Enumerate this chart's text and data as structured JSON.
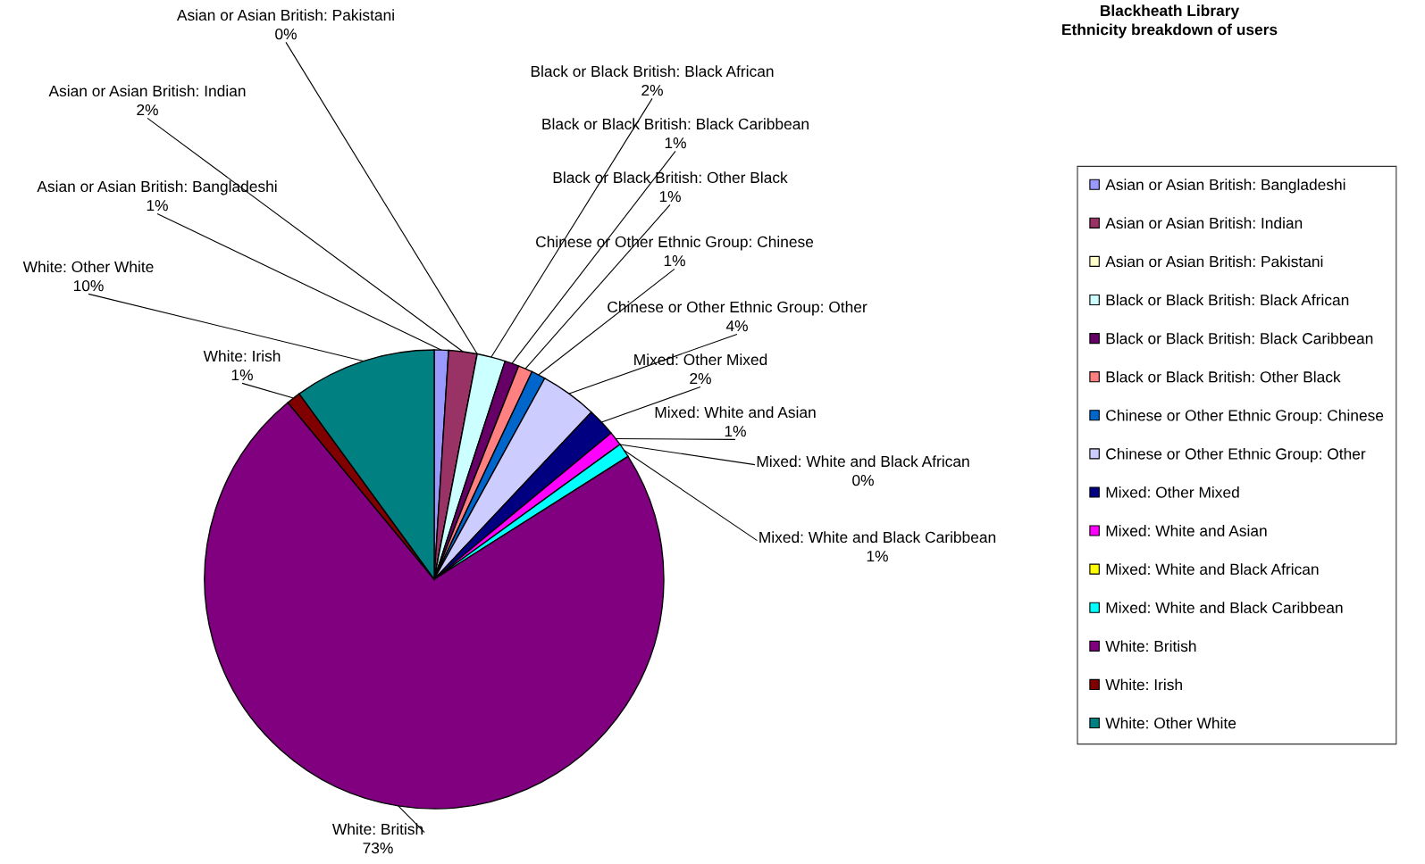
{
  "chart_data": {
    "type": "pie",
    "title": "Blackheath Library\nEthnicity breakdown of users",
    "categories": [
      "Asian or Asian British: Bangladeshi",
      "Asian or Asian British: Indian",
      "Asian or Asian British: Pakistani",
      "Black or Black British: Black African",
      "Black or Black British: Black Caribbean",
      "Black or Black British: Other Black",
      "Chinese or Other Ethnic Group: Chinese",
      "Chinese or Other Ethnic Group: Other",
      "Mixed: Other Mixed",
      "Mixed: White and Asian",
      "Mixed: White and Black African",
      "Mixed: White and Black Caribbean",
      "White: British",
      "White: Irish",
      "White: Other White"
    ],
    "values": [
      1,
      2,
      0,
      2,
      1,
      1,
      1,
      4,
      2,
      1,
      0,
      1,
      73,
      1,
      10
    ],
    "value_labels": [
      "1%",
      "2%",
      "0%",
      "2%",
      "1%",
      "1%",
      "1%",
      "4%",
      "2%",
      "1%",
      "0%",
      "1%",
      "73%",
      "1%",
      "10%"
    ],
    "colors": [
      "#9999ff",
      "#993366",
      "#ffffcc",
      "#ccffff",
      "#660066",
      "#ff8080",
      "#0066cc",
      "#ccccff",
      "#000080",
      "#ff00ff",
      "#ffff00",
      "#00ffff",
      "#800080",
      "#800000",
      "#008080"
    ],
    "legend": "right"
  }
}
